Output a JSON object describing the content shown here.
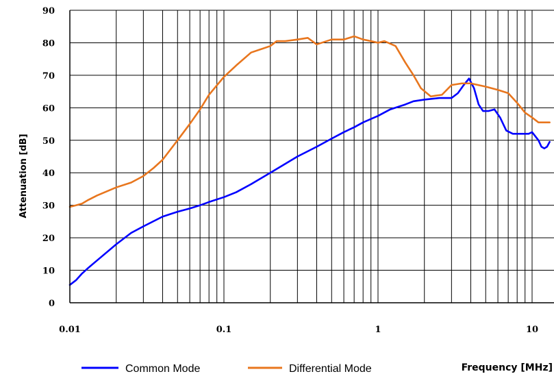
{
  "chart_data": {
    "type": "line",
    "xscale": "log",
    "xlim": [
      0.01,
      13
    ],
    "ylim": [
      0,
      90
    ],
    "grid": true,
    "xlabel": "Frequency [MHz]",
    "ylabel": "Attenuation [dB]",
    "xticks": [
      "0.01",
      "0.1",
      "1",
      "10"
    ],
    "yticks": [
      "0",
      "10",
      "20",
      "30",
      "40",
      "50",
      "60",
      "70",
      "80",
      "90"
    ],
    "legend_position": "bottom",
    "series": [
      {
        "name": "Common Mode",
        "color": "#0000ff",
        "points": [
          [
            0.01,
            5.5
          ],
          [
            0.011,
            7
          ],
          [
            0.012,
            9
          ],
          [
            0.013,
            10.5
          ],
          [
            0.015,
            13
          ],
          [
            0.02,
            18
          ],
          [
            0.025,
            21.5
          ],
          [
            0.03,
            23.5
          ],
          [
            0.04,
            26.5
          ],
          [
            0.05,
            28
          ],
          [
            0.06,
            29
          ],
          [
            0.07,
            30
          ],
          [
            0.08,
            31
          ],
          [
            0.1,
            32.5
          ],
          [
            0.12,
            34
          ],
          [
            0.15,
            36.5
          ],
          [
            0.2,
            40
          ],
          [
            0.3,
            45
          ],
          [
            0.4,
            48
          ],
          [
            0.5,
            50.5
          ],
          [
            0.6,
            52.5
          ],
          [
            0.7,
            54
          ],
          [
            0.8,
            55.5
          ],
          [
            1.0,
            57.5
          ],
          [
            1.2,
            59.5
          ],
          [
            1.5,
            61
          ],
          [
            1.7,
            62
          ],
          [
            2.0,
            62.5
          ],
          [
            2.5,
            63
          ],
          [
            3.0,
            63
          ],
          [
            3.3,
            64.5
          ],
          [
            3.6,
            67
          ],
          [
            3.9,
            69
          ],
          [
            4.2,
            66
          ],
          [
            4.5,
            61
          ],
          [
            4.8,
            59
          ],
          [
            5.2,
            59
          ],
          [
            5.7,
            59.5
          ],
          [
            6.2,
            57
          ],
          [
            6.8,
            53
          ],
          [
            7.5,
            52
          ],
          [
            8.5,
            52
          ],
          [
            9.5,
            52
          ],
          [
            10,
            52.5
          ],
          [
            11,
            50
          ],
          [
            11.5,
            48
          ],
          [
            12,
            47.5
          ],
          [
            12.5,
            48
          ],
          [
            13,
            49.5
          ]
        ]
      },
      {
        "name": "Differential Mode",
        "color": "#e8761e",
        "points": [
          [
            0.01,
            29.5
          ],
          [
            0.011,
            30
          ],
          [
            0.012,
            30.5
          ],
          [
            0.013,
            31.5
          ],
          [
            0.015,
            33
          ],
          [
            0.02,
            35.5
          ],
          [
            0.025,
            37
          ],
          [
            0.03,
            39
          ],
          [
            0.035,
            41.5
          ],
          [
            0.04,
            44
          ],
          [
            0.05,
            50
          ],
          [
            0.06,
            55
          ],
          [
            0.07,
            59.5
          ],
          [
            0.08,
            64
          ],
          [
            0.1,
            69.5
          ],
          [
            0.12,
            73
          ],
          [
            0.15,
            77
          ],
          [
            0.2,
            79
          ],
          [
            0.22,
            80.5
          ],
          [
            0.25,
            80.5
          ],
          [
            0.3,
            81
          ],
          [
            0.35,
            81.5
          ],
          [
            0.4,
            79.5
          ],
          [
            0.5,
            81
          ],
          [
            0.6,
            81
          ],
          [
            0.7,
            82
          ],
          [
            0.8,
            81
          ],
          [
            0.9,
            80.5
          ],
          [
            1.0,
            80
          ],
          [
            1.1,
            80.5
          ],
          [
            1.3,
            79
          ],
          [
            1.5,
            74
          ],
          [
            1.7,
            70
          ],
          [
            1.9,
            66
          ],
          [
            2.2,
            63.5
          ],
          [
            2.6,
            64
          ],
          [
            3.0,
            67
          ],
          [
            3.5,
            67.5
          ],
          [
            4.0,
            67.5
          ],
          [
            5.0,
            66.5
          ],
          [
            6.0,
            65.5
          ],
          [
            7.0,
            64.5
          ],
          [
            8.0,
            61.5
          ],
          [
            9.0,
            58.5
          ],
          [
            10,
            57
          ],
          [
            11,
            55.5
          ],
          [
            12,
            55.5
          ],
          [
            13,
            55.5
          ]
        ]
      }
    ]
  }
}
